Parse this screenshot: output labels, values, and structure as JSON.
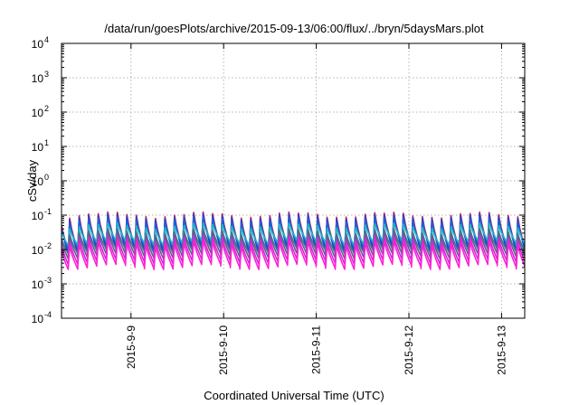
{
  "chart_data": {
    "type": "line",
    "title": "/data/run/goesPlots/archive/2015-09-13/06:00/flux/../bryn/5daysMars.plot",
    "xlabel": "Coordinated Universal Time (UTC)",
    "ylabel": "cSv/day",
    "yscale": "log",
    "ylim": [
      0.0001,
      10000
    ],
    "y_ticks": [
      {
        "value": 0.0001,
        "base": "10",
        "exp": "-4"
      },
      {
        "value": 0.001,
        "base": "10",
        "exp": "-3"
      },
      {
        "value": 0.01,
        "base": "10",
        "exp": "-2"
      },
      {
        "value": 0.1,
        "base": "10",
        "exp": "-1"
      },
      {
        "value": 1,
        "base": "10",
        "exp": "0"
      },
      {
        "value": 10,
        "base": "10",
        "exp": "1"
      },
      {
        "value": 100,
        "base": "10",
        "exp": "2"
      },
      {
        "value": 1000,
        "base": "10",
        "exp": "3"
      },
      {
        "value": 10000,
        "base": "10",
        "exp": "4"
      }
    ],
    "xlim": [
      "2015-09-08T06:00",
      "2015-09-13T06:00"
    ],
    "x_ticks": [
      {
        "value": "2015-09-09T00:00",
        "label": "2015-9-9"
      },
      {
        "value": "2015-09-10T00:00",
        "label": "2015-9-10"
      },
      {
        "value": "2015-09-11T00:00",
        "label": "2015-9-11"
      },
      {
        "value": "2015-09-12T00:00",
        "label": "2015-9-12"
      },
      {
        "value": "2015-09-13T00:00",
        "label": "2015-9-13"
      }
    ],
    "grid": true,
    "legend": "none",
    "pattern": {
      "cycle_hours": 2.47,
      "rise_fraction": 0.15,
      "decay_fraction": 0.85
    },
    "series": [
      {
        "color": "#e8202a",
        "peak": 0.105,
        "trough": 0.011
      },
      {
        "color": "#2b3cd4",
        "peak": 0.095,
        "trough": 0.009
      },
      {
        "color": "#1f5fd6",
        "peak": 0.075,
        "trough": 0.013
      },
      {
        "color": "#20b6c8",
        "peak": 0.05,
        "trough": 0.016
      },
      {
        "color": "#3c7a8c",
        "peak": 0.035,
        "trough": 0.009
      },
      {
        "color": "#6a5a9a",
        "peak": 0.03,
        "trough": 0.0065
      },
      {
        "color": "#d22ccf",
        "peak": 0.022,
        "trough": 0.0045
      },
      {
        "color": "#ff1fd8",
        "peak": 0.016,
        "trough": 0.0032
      }
    ]
  }
}
